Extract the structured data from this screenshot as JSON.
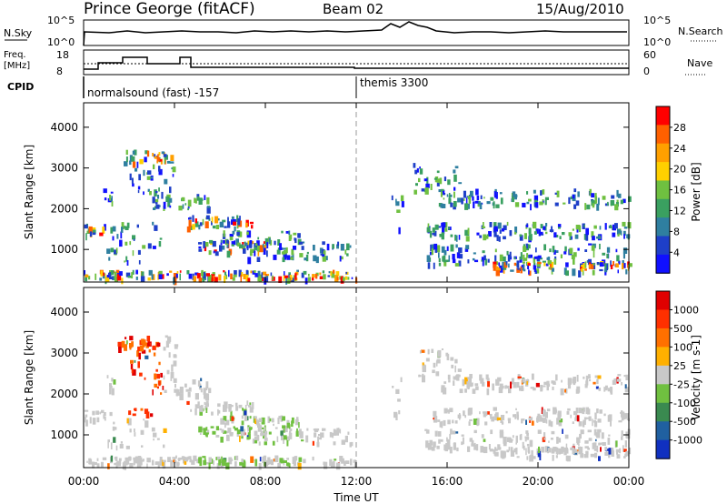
{
  "header": {
    "title": "Prince George (fitACF)",
    "beam": "Beam 02",
    "date": "15/Aug/2010"
  },
  "panels": {
    "nsky_label": "N.Sky",
    "nsky_ticks": [
      "10^5",
      "10^0"
    ],
    "nsearch_label": "N.Search",
    "freq_label_line1": "Freq.",
    "freq_label_line2": "[MHz]",
    "freq_ticks": [
      "18",
      "8"
    ],
    "nave_label": "Nave",
    "nave_ticks": [
      "60",
      "0"
    ],
    "cpid_label": "CPID",
    "cpid_segments": [
      "normalsound (fast) -157",
      "themis 3300"
    ]
  },
  "chart_data": [
    {
      "type": "heatmap",
      "name": "power",
      "xlabel": "Time UT",
      "ylabel": "Slant Range [km]",
      "x_range_hours": [
        0,
        24
      ],
      "ylim": [
        200,
        4600
      ],
      "yticks": [
        1000,
        2000,
        3000,
        4000
      ],
      "xticks": [
        "00:00",
        "04:00",
        "08:00",
        "12:00",
        "16:00",
        "20:00",
        "00:00"
      ],
      "colorbar_label": "Power [dB]",
      "colorbar_ticks": [
        "28",
        "24",
        "20",
        "16",
        "12",
        "8",
        "4"
      ],
      "colors": [
        "#1010ff",
        "#1e3fc8",
        "#2f7fa0",
        "#3aa060",
        "#6fc040",
        "#ffd000",
        "#ffa000",
        "#ff6000",
        "#ff0000"
      ]
    },
    {
      "type": "heatmap",
      "name": "velocity",
      "xlabel": "Time UT",
      "ylabel": "Slant Range [km]",
      "x_range_hours": [
        0,
        24
      ],
      "ylim": [
        200,
        4600
      ],
      "yticks": [
        1000,
        2000,
        3000,
        4000
      ],
      "xticks": [
        "00:00",
        "04:00",
        "08:00",
        "12:00",
        "16:00",
        "20:00",
        "00:00"
      ],
      "colorbar_label": "Velocity [m s-1]",
      "colorbar_ticks": [
        "1000",
        "500",
        "100",
        "25",
        "-25",
        "-100",
        "-500",
        "-1000"
      ],
      "colors": [
        "#1030c0",
        "#2060a0",
        "#3a8a50",
        "#70c040",
        "#c8c8c8",
        "#ffb000",
        "#ff7000",
        "#ff3000",
        "#e00000"
      ]
    }
  ]
}
